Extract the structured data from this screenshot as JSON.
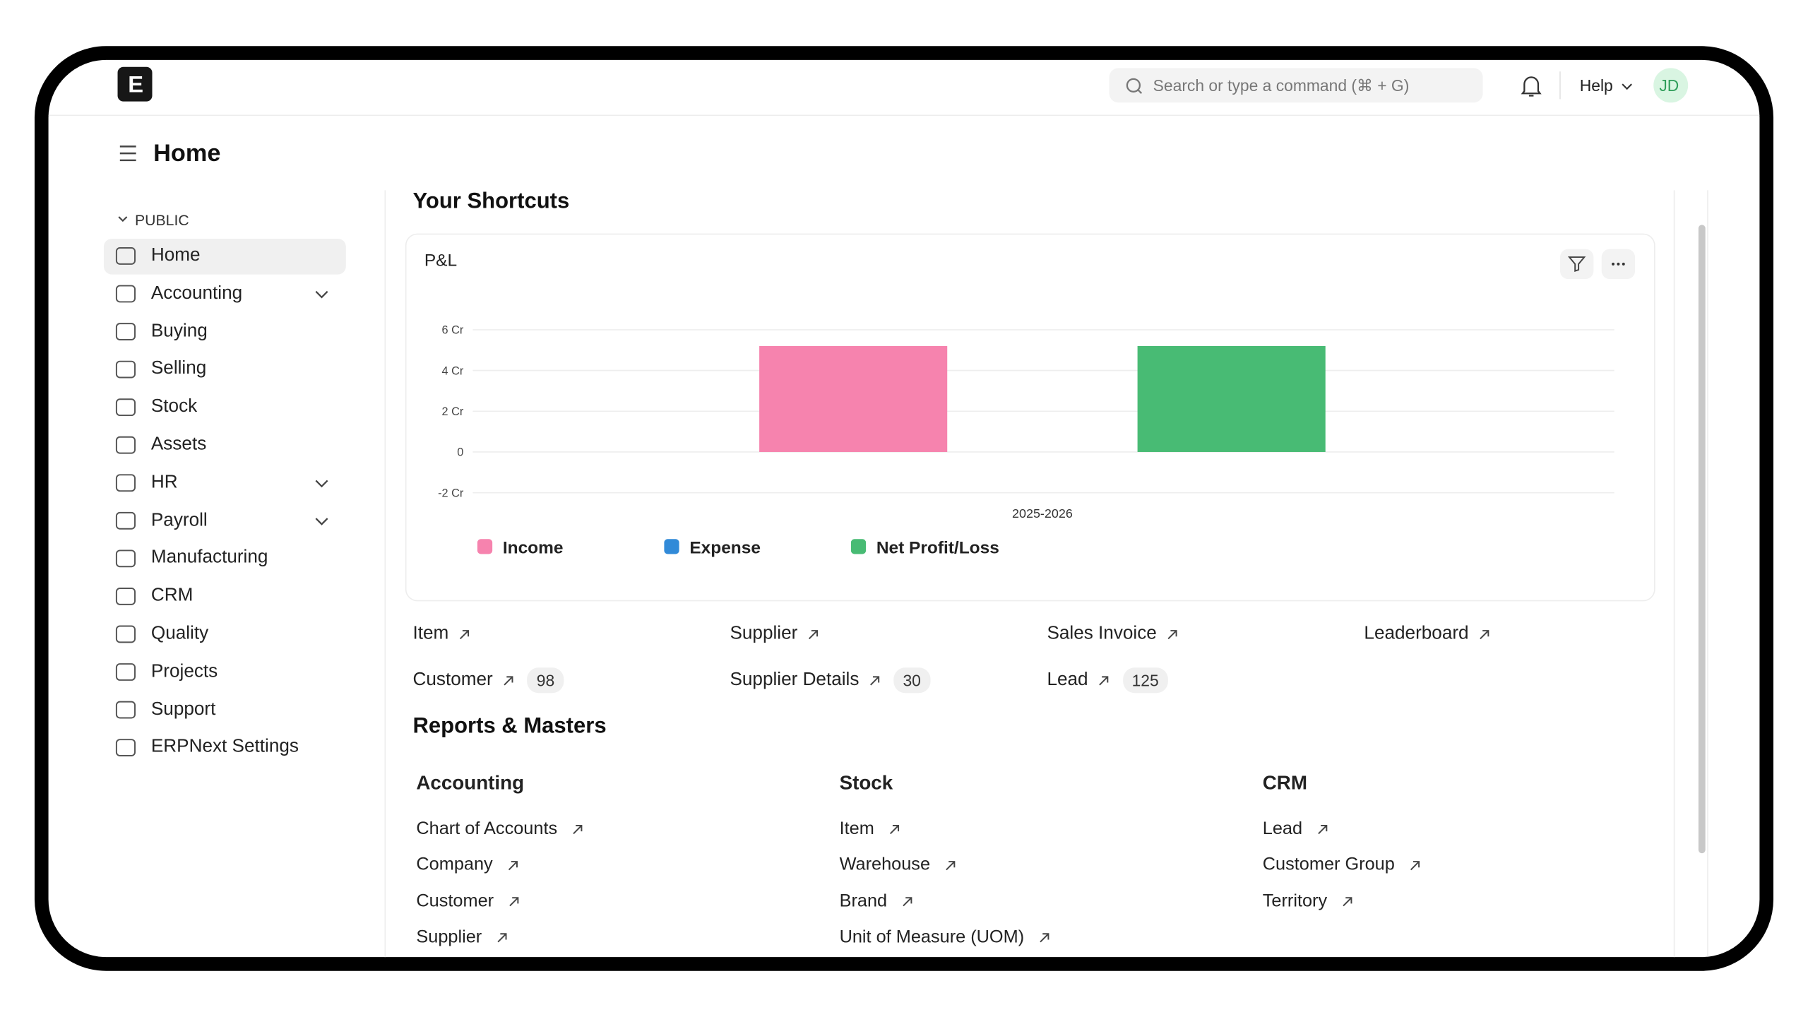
{
  "topbar": {
    "logo": "E",
    "search_placeholder": "Search or type a command (⌘ + G)",
    "help": "Help",
    "avatar": "JD"
  },
  "page_title": "Home",
  "sidebar": {
    "section": "PUBLIC",
    "items": [
      "Home",
      "Accounting",
      "Buying",
      "Selling",
      "Stock",
      "Assets",
      "HR",
      "Payroll",
      "Manufacturing",
      "CRM",
      "Quality",
      "Projects",
      "Support",
      "ERPNext Settings"
    ],
    "expandable": [
      "Accounting",
      "HR",
      "Payroll"
    ],
    "active": "Home"
  },
  "shortcuts_title": "Your Shortcuts",
  "chart_data": {
    "type": "bar",
    "title": "P&L",
    "categories": [
      "2025-2026"
    ],
    "series": [
      {
        "name": "Income",
        "color": "#f683ae",
        "values": [
          5.2
        ]
      },
      {
        "name": "Expense",
        "color": "#318ad8",
        "values": [
          0
        ]
      },
      {
        "name": "Net Profit/Loss",
        "color": "#48bb74",
        "values": [
          5.2
        ]
      }
    ],
    "ylim": [
      -2,
      6
    ],
    "yticks": [
      {
        "value": -2,
        "label": "-2 Cr"
      },
      0,
      {
        "value": 2,
        "label": "2 Cr"
      },
      {
        "value": 4,
        "label": "4 Cr"
      },
      {
        "value": 6,
        "label": "6 Cr"
      }
    ],
    "grid": true,
    "legend": "bottom"
  },
  "shortcuts": [
    {
      "label": "Item"
    },
    {
      "label": "Supplier"
    },
    {
      "label": "Sales Invoice"
    },
    {
      "label": "Leaderboard"
    },
    {
      "label": "Customer",
      "count": "98"
    },
    {
      "label": "Supplier Details",
      "count": "30"
    },
    {
      "label": "Lead",
      "count": "125"
    }
  ],
  "reports_title": "Reports & Masters",
  "reports": [
    {
      "title": "Accounting",
      "links": [
        "Chart of Accounts",
        "Company",
        "Customer",
        "Supplier"
      ]
    },
    {
      "title": "Stock",
      "links": [
        "Item",
        "Warehouse",
        "Brand",
        "Unit of Measure (UOM)"
      ]
    },
    {
      "title": "CRM",
      "links": [
        "Lead",
        "Customer Group",
        "Territory"
      ]
    }
  ]
}
